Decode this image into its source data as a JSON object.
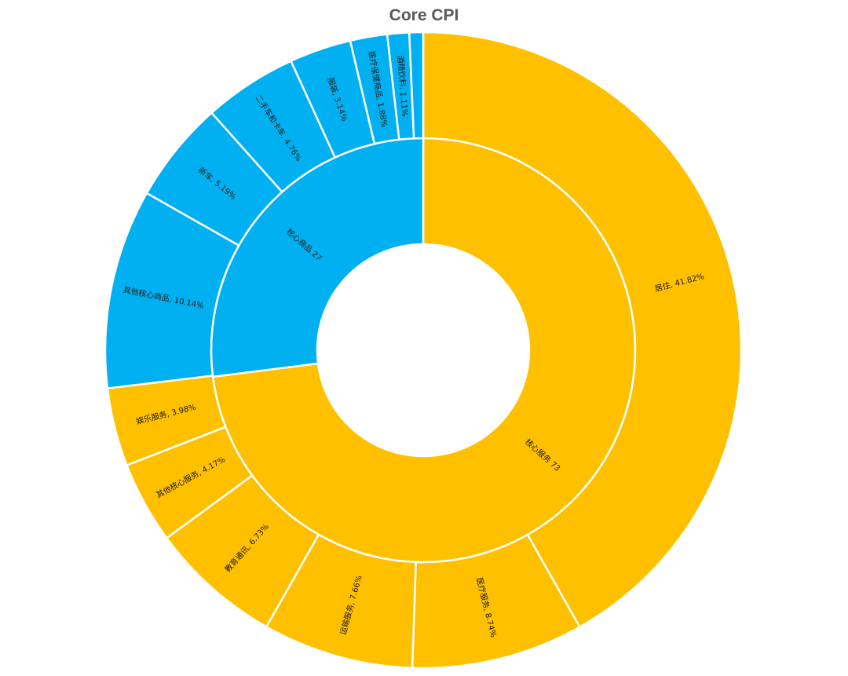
{
  "chart_data": {
    "type": "sunburst",
    "title": "Core CPI",
    "colors": {
      "核心服务": "#FFC000",
      "核心商品": "#00B0F0",
      "separator": "#FFFFFF"
    },
    "groups": [
      {
        "name": "核心服务",
        "value": 73,
        "label": "核心服务 73",
        "children": [
          {
            "name": "居住",
            "value": 41.82,
            "label": "居住, 41.82%"
          },
          {
            "name": "医疗服务",
            "value": 8.74,
            "label": "医疗服务, 8.74%"
          },
          {
            "name": "运输服务",
            "value": 7.66,
            "label": "运输服务, 7.66%"
          },
          {
            "name": "教育通讯",
            "value": 6.73,
            "label": "教育通讯, 6.73%"
          },
          {
            "name": "其他核心服务",
            "value": 4.17,
            "label": "其他核心服务, 4.17%"
          },
          {
            "name": "娱乐服务",
            "value": 3.98,
            "label": "娱乐服务, 3.98%"
          }
        ]
      },
      {
        "name": "核心商品",
        "value": 27,
        "label": "核心商品 27",
        "children": [
          {
            "name": "其他核心商品",
            "value": 10.14,
            "label": "其他核心商品, 10.14%"
          },
          {
            "name": "新车",
            "value": 5.19,
            "label": "新车, 5.19%"
          },
          {
            "name": "二手车和卡车",
            "value": 4.76,
            "label": "二手车和卡车, 4.76%"
          },
          {
            "name": "服装",
            "value": 3.14,
            "label": "服装, 3.14%"
          },
          {
            "name": "医疗保健商品",
            "value": 1.88,
            "label": "医疗保健商品, 1.88%"
          },
          {
            "name": "酒精饮料",
            "value": 1.11,
            "label": "酒精饮料, 1.11%"
          },
          {
            "name": "",
            "value": 0.7,
            "label": ""
          }
        ]
      }
    ]
  }
}
